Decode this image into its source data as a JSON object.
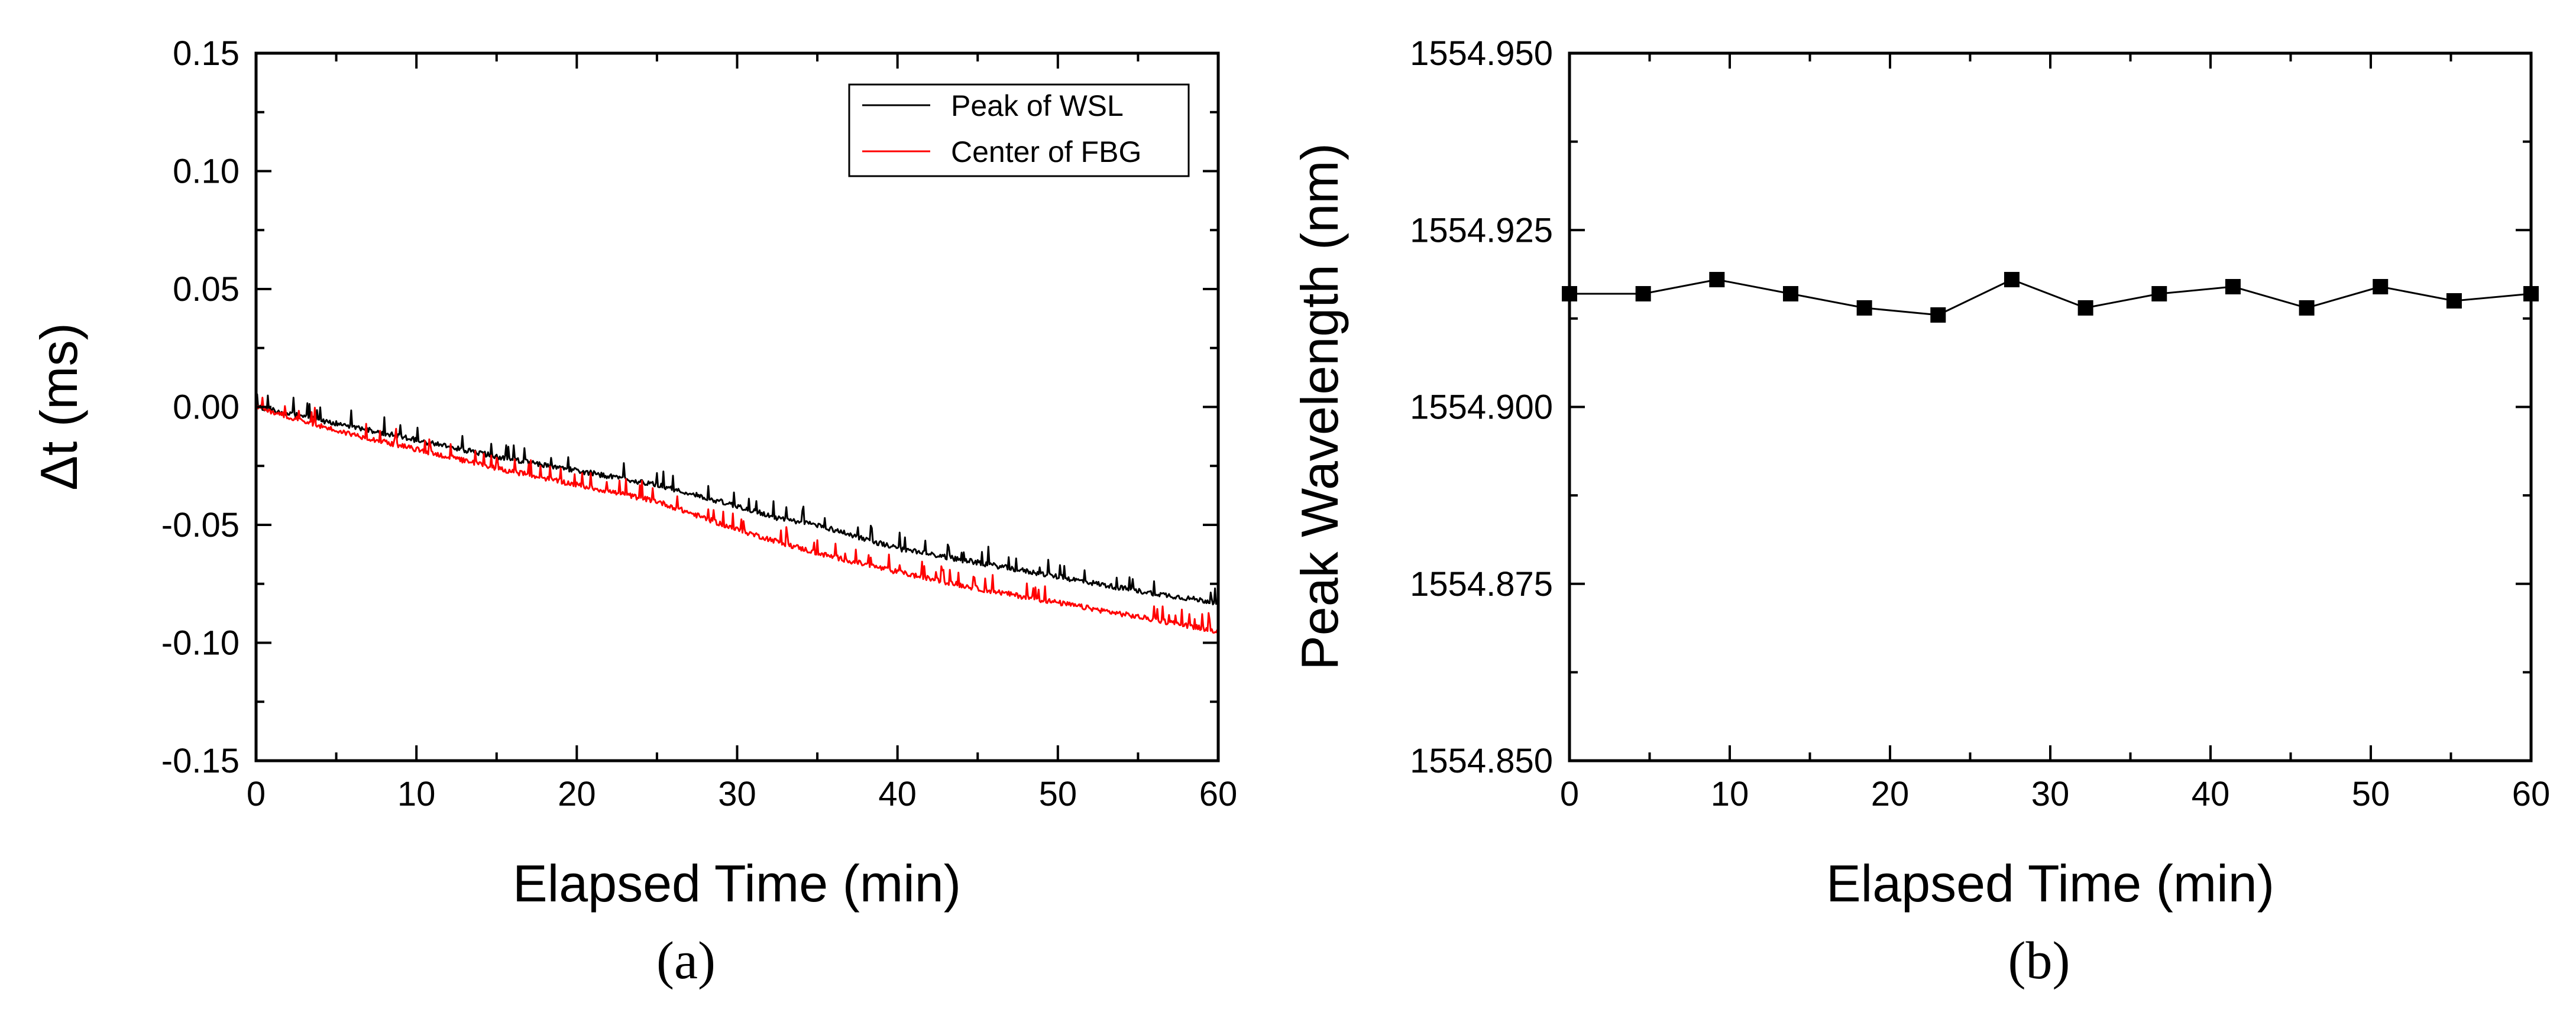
{
  "chart_data": [
    {
      "type": "line",
      "panel_label": "(a)",
      "xlabel": "Elapsed Time (min)",
      "ylabel": "Δt (ms)",
      "xlim": [
        0,
        60
      ],
      "ylim": [
        -0.15,
        0.15
      ],
      "x_ticks": [
        "0",
        "10",
        "20",
        "30",
        "40",
        "50",
        "60"
      ],
      "y_ticks": [
        "0.15",
        "0.10",
        "0.05",
        "0.00",
        "-0.05",
        "-0.10",
        "-0.15"
      ],
      "legend_position": "top-right",
      "series": [
        {
          "name": "Peak of WSL",
          "color": "#000000",
          "x": [
            0,
            5,
            10,
            15,
            20,
            25,
            30,
            33,
            35,
            40,
            45,
            50,
            55,
            60
          ],
          "values": [
            0.0,
            -0.007,
            -0.014,
            -0.021,
            -0.027,
            -0.033,
            -0.042,
            -0.048,
            -0.05,
            -0.06,
            -0.066,
            -0.072,
            -0.078,
            -0.083
          ]
        },
        {
          "name": "Center of FBG",
          "color": "#ff0000",
          "x": [
            0,
            5,
            10,
            15,
            20,
            25,
            30,
            33,
            35,
            40,
            45,
            50,
            55,
            60
          ],
          "values": [
            0.0,
            -0.01,
            -0.018,
            -0.026,
            -0.033,
            -0.04,
            -0.052,
            -0.058,
            -0.062,
            -0.07,
            -0.077,
            -0.083,
            -0.089,
            -0.095
          ]
        }
      ]
    },
    {
      "type": "line",
      "panel_label": "(b)",
      "xlabel": "Elapsed Time (min)",
      "ylabel": "Peak Wavelength (nm)",
      "xlim": [
        0,
        60
      ],
      "ylim": [
        1554.85,
        1554.95
      ],
      "x_ticks": [
        "0",
        "10",
        "20",
        "30",
        "40",
        "50",
        "60"
      ],
      "y_ticks": [
        "1554.950",
        "1554.925",
        "1554.900",
        "1554.875",
        "1554.850"
      ],
      "series": [
        {
          "name": "Peak Wavelength",
          "color": "#000000",
          "marker": "square",
          "x": [
            0,
            4.6,
            9.2,
            13.8,
            18.4,
            23,
            27.6,
            32.2,
            36.8,
            41.4,
            46,
            50.6,
            55.2,
            60
          ],
          "values": [
            1554.916,
            1554.916,
            1554.918,
            1554.916,
            1554.914,
            1554.913,
            1554.918,
            1554.914,
            1554.916,
            1554.917,
            1554.914,
            1554.917,
            1554.915,
            1554.916
          ]
        }
      ]
    }
  ]
}
